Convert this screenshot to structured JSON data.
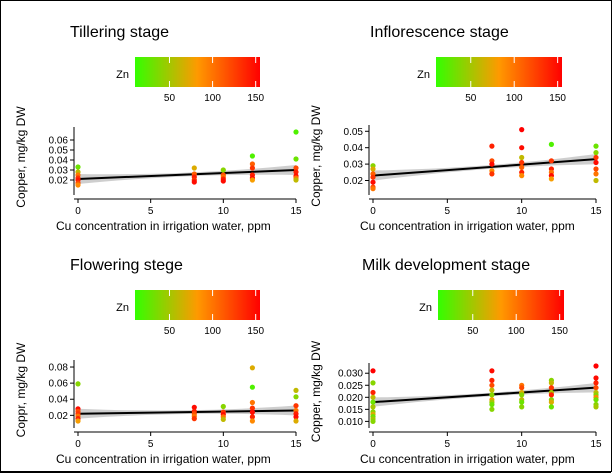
{
  "legend": {
    "title": "Zn",
    "ticks": [
      50,
      100,
      150
    ],
    "range": [
      10,
      155
    ],
    "colors": [
      "#33ff00",
      "#ff9900",
      "#ff0000"
    ]
  },
  "chart_data": [
    {
      "type": "scatter",
      "title": "Tillering stage",
      "xlabel": "Cu concentration in irrigation water, ppm",
      "ylabel": "Copper, mg/kg DW",
      "xlim": [
        0,
        15
      ],
      "ylim": [
        0.008,
        0.07
      ],
      "xticks": [
        0,
        5,
        10,
        15
      ],
      "yticks": [
        "0.02",
        "0.03",
        "0.04",
        "0.05",
        "0.06"
      ],
      "fit": {
        "x": [
          0,
          15
        ],
        "y": [
          0.021,
          0.03
        ]
      },
      "points": [
        {
          "x": 0,
          "y": 0.033,
          "z": 30
        },
        {
          "x": 0,
          "y": 0.028,
          "z": 60
        },
        {
          "x": 0,
          "y": 0.025,
          "z": 100
        },
        {
          "x": 0,
          "y": 0.022,
          "z": 130
        },
        {
          "x": 0,
          "y": 0.02,
          "z": 145
        },
        {
          "x": 0,
          "y": 0.017,
          "z": 120
        },
        {
          "x": 0,
          "y": 0.015,
          "z": 90
        },
        {
          "x": 8,
          "y": 0.032,
          "z": 70
        },
        {
          "x": 8,
          "y": 0.026,
          "z": 110
        },
        {
          "x": 8,
          "y": 0.023,
          "z": 140
        },
        {
          "x": 8,
          "y": 0.02,
          "z": 130
        },
        {
          "x": 8,
          "y": 0.018,
          "z": 150
        },
        {
          "x": 10,
          "y": 0.03,
          "z": 40
        },
        {
          "x": 10,
          "y": 0.025,
          "z": 120
        },
        {
          "x": 10,
          "y": 0.023,
          "z": 100
        },
        {
          "x": 10,
          "y": 0.021,
          "z": 140
        },
        {
          "x": 10,
          "y": 0.019,
          "z": 150
        },
        {
          "x": 12,
          "y": 0.044,
          "z": 20
        },
        {
          "x": 12,
          "y": 0.036,
          "z": 110
        },
        {
          "x": 12,
          "y": 0.032,
          "z": 130
        },
        {
          "x": 12,
          "y": 0.025,
          "z": 140
        },
        {
          "x": 12,
          "y": 0.022,
          "z": 150
        },
        {
          "x": 12,
          "y": 0.02,
          "z": 80
        },
        {
          "x": 15,
          "y": 0.068,
          "z": 20
        },
        {
          "x": 15,
          "y": 0.041,
          "z": 30
        },
        {
          "x": 15,
          "y": 0.032,
          "z": 120
        },
        {
          "x": 15,
          "y": 0.028,
          "z": 140
        },
        {
          "x": 15,
          "y": 0.024,
          "z": 150
        },
        {
          "x": 15,
          "y": 0.022,
          "z": 100
        },
        {
          "x": 15,
          "y": 0.02,
          "z": 60
        }
      ]
    },
    {
      "type": "scatter",
      "title": "Inflorescence stage",
      "xlabel": "Cu concentration in irrigation water, ppm",
      "ylabel": "Copper, mg/kg DW",
      "xlim": [
        0,
        15
      ],
      "ylim": [
        0.013,
        0.052
      ],
      "xticks": [
        0,
        5,
        10,
        15
      ],
      "yticks": [
        "0.02",
        "0.03",
        "0.04",
        "0.05"
      ],
      "fit": {
        "x": [
          0,
          15
        ],
        "y": [
          0.023,
          0.033
        ]
      },
      "points": [
        {
          "x": 0,
          "y": 0.029,
          "z": 40
        },
        {
          "x": 0,
          "y": 0.027,
          "z": 70
        },
        {
          "x": 0,
          "y": 0.024,
          "z": 110
        },
        {
          "x": 0,
          "y": 0.022,
          "z": 130
        },
        {
          "x": 0,
          "y": 0.019,
          "z": 150
        },
        {
          "x": 0,
          "y": 0.016,
          "z": 120
        },
        {
          "x": 0,
          "y": 0.015,
          "z": 100
        },
        {
          "x": 8,
          "y": 0.041,
          "z": 140
        },
        {
          "x": 8,
          "y": 0.032,
          "z": 120
        },
        {
          "x": 8,
          "y": 0.03,
          "z": 150
        },
        {
          "x": 8,
          "y": 0.026,
          "z": 90
        },
        {
          "x": 8,
          "y": 0.024,
          "z": 130
        },
        {
          "x": 10,
          "y": 0.051,
          "z": 155
        },
        {
          "x": 10,
          "y": 0.04,
          "z": 150
        },
        {
          "x": 10,
          "y": 0.034,
          "z": 60
        },
        {
          "x": 10,
          "y": 0.031,
          "z": 130
        },
        {
          "x": 10,
          "y": 0.028,
          "z": 110
        },
        {
          "x": 10,
          "y": 0.025,
          "z": 140
        },
        {
          "x": 10,
          "y": 0.023,
          "z": 90
        },
        {
          "x": 12,
          "y": 0.042,
          "z": 20
        },
        {
          "x": 12,
          "y": 0.032,
          "z": 130
        },
        {
          "x": 12,
          "y": 0.027,
          "z": 140
        },
        {
          "x": 12,
          "y": 0.025,
          "z": 100
        },
        {
          "x": 12,
          "y": 0.023,
          "z": 150
        },
        {
          "x": 12,
          "y": 0.021,
          "z": 80
        },
        {
          "x": 15,
          "y": 0.041,
          "z": 30
        },
        {
          "x": 15,
          "y": 0.037,
          "z": 40
        },
        {
          "x": 15,
          "y": 0.034,
          "z": 130
        },
        {
          "x": 15,
          "y": 0.031,
          "z": 150
        },
        {
          "x": 15,
          "y": 0.027,
          "z": 120
        },
        {
          "x": 15,
          "y": 0.024,
          "z": 100
        },
        {
          "x": 15,
          "y": 0.02,
          "z": 60
        }
      ]
    },
    {
      "type": "scatter",
      "title": "Flowering stege",
      "xlabel": "Cu concentration in irrigation water, ppm",
      "ylabel": "Coppr, mg/kg DW",
      "xlim": [
        0,
        15
      ],
      "ylim": [
        0.008,
        0.085
      ],
      "xticks": [
        0,
        5,
        10,
        15
      ],
      "yticks": [
        "0.02",
        "0.04",
        "0.06",
        "0.08"
      ],
      "fit": {
        "x": [
          0,
          15
        ],
        "y": [
          0.022,
          0.026
        ]
      },
      "points": [
        {
          "x": 0,
          "y": 0.059,
          "z": 40
        },
        {
          "x": 0,
          "y": 0.028,
          "z": 150
        },
        {
          "x": 0,
          "y": 0.025,
          "z": 120
        },
        {
          "x": 0,
          "y": 0.022,
          "z": 130
        },
        {
          "x": 0,
          "y": 0.019,
          "z": 100
        },
        {
          "x": 0,
          "y": 0.016,
          "z": 140
        },
        {
          "x": 0,
          "y": 0.013,
          "z": 80
        },
        {
          "x": 8,
          "y": 0.03,
          "z": 150
        },
        {
          "x": 8,
          "y": 0.025,
          "z": 140
        },
        {
          "x": 8,
          "y": 0.022,
          "z": 120
        },
        {
          "x": 8,
          "y": 0.019,
          "z": 100
        },
        {
          "x": 8,
          "y": 0.016,
          "z": 130
        },
        {
          "x": 10,
          "y": 0.031,
          "z": 40
        },
        {
          "x": 10,
          "y": 0.024,
          "z": 130
        },
        {
          "x": 10,
          "y": 0.021,
          "z": 150
        },
        {
          "x": 10,
          "y": 0.018,
          "z": 100
        },
        {
          "x": 10,
          "y": 0.015,
          "z": 60
        },
        {
          "x": 12,
          "y": 0.079,
          "z": 70
        },
        {
          "x": 12,
          "y": 0.055,
          "z": 20
        },
        {
          "x": 12,
          "y": 0.036,
          "z": 100
        },
        {
          "x": 12,
          "y": 0.029,
          "z": 130
        },
        {
          "x": 12,
          "y": 0.024,
          "z": 150
        },
        {
          "x": 12,
          "y": 0.018,
          "z": 140
        },
        {
          "x": 12,
          "y": 0.013,
          "z": 90
        },
        {
          "x": 15,
          "y": 0.051,
          "z": 60
        },
        {
          "x": 15,
          "y": 0.043,
          "z": 40
        },
        {
          "x": 15,
          "y": 0.032,
          "z": 130
        },
        {
          "x": 15,
          "y": 0.026,
          "z": 100
        },
        {
          "x": 15,
          "y": 0.022,
          "z": 140
        },
        {
          "x": 15,
          "y": 0.018,
          "z": 150
        },
        {
          "x": 15,
          "y": 0.013,
          "z": 70
        }
      ]
    },
    {
      "type": "scatter",
      "title": "Milk development stage",
      "xlabel": "Cu concentration in irrigation water, ppm",
      "ylabel": "Copper, mg/kg DW",
      "xlim": [
        0,
        15
      ],
      "ylim": [
        0.0085,
        0.033
      ],
      "xticks": [
        0,
        5,
        10,
        15
      ],
      "yticks": [
        "0.010",
        "0.015",
        "0.020",
        "0.025",
        "0.030"
      ],
      "fit": {
        "x": [
          0,
          15
        ],
        "y": [
          0.018,
          0.024
        ]
      },
      "points": [
        {
          "x": 0,
          "y": 0.031,
          "z": 155
        },
        {
          "x": 0,
          "y": 0.026,
          "z": 40
        },
        {
          "x": 0,
          "y": 0.022,
          "z": 140
        },
        {
          "x": 0,
          "y": 0.02,
          "z": 60
        },
        {
          "x": 0,
          "y": 0.018,
          "z": 30
        },
        {
          "x": 0,
          "y": 0.016,
          "z": 50
        },
        {
          "x": 0,
          "y": 0.014,
          "z": 40
        },
        {
          "x": 0,
          "y": 0.013,
          "z": 70
        },
        {
          "x": 0,
          "y": 0.012,
          "z": 30
        },
        {
          "x": 0,
          "y": 0.011,
          "z": 50
        },
        {
          "x": 0,
          "y": 0.01,
          "z": 40
        },
        {
          "x": 8,
          "y": 0.031,
          "z": 150
        },
        {
          "x": 8,
          "y": 0.027,
          "z": 140
        },
        {
          "x": 8,
          "y": 0.025,
          "z": 120
        },
        {
          "x": 8,
          "y": 0.023,
          "z": 60
        },
        {
          "x": 8,
          "y": 0.021,
          "z": 40
        },
        {
          "x": 8,
          "y": 0.019,
          "z": 80
        },
        {
          "x": 8,
          "y": 0.018,
          "z": 50
        },
        {
          "x": 8,
          "y": 0.017,
          "z": 30
        },
        {
          "x": 8,
          "y": 0.015,
          "z": 40
        },
        {
          "x": 10,
          "y": 0.025,
          "z": 100
        },
        {
          "x": 10,
          "y": 0.024,
          "z": 120
        },
        {
          "x": 10,
          "y": 0.022,
          "z": 70
        },
        {
          "x": 10,
          "y": 0.021,
          "z": 40
        },
        {
          "x": 10,
          "y": 0.019,
          "z": 60
        },
        {
          "x": 10,
          "y": 0.018,
          "z": 30
        },
        {
          "x": 10,
          "y": 0.016,
          "z": 40
        },
        {
          "x": 12,
          "y": 0.027,
          "z": 40
        },
        {
          "x": 12,
          "y": 0.026,
          "z": 60
        },
        {
          "x": 12,
          "y": 0.024,
          "z": 130
        },
        {
          "x": 12,
          "y": 0.022,
          "z": 50
        },
        {
          "x": 12,
          "y": 0.021,
          "z": 140
        },
        {
          "x": 12,
          "y": 0.019,
          "z": 40
        },
        {
          "x": 12,
          "y": 0.018,
          "z": 70
        },
        {
          "x": 12,
          "y": 0.016,
          "z": 30
        },
        {
          "x": 15,
          "y": 0.033,
          "z": 155
        },
        {
          "x": 15,
          "y": 0.028,
          "z": 150
        },
        {
          "x": 15,
          "y": 0.026,
          "z": 140
        },
        {
          "x": 15,
          "y": 0.024,
          "z": 120
        },
        {
          "x": 15,
          "y": 0.022,
          "z": 60
        },
        {
          "x": 15,
          "y": 0.021,
          "z": 40
        },
        {
          "x": 15,
          "y": 0.02,
          "z": 90
        },
        {
          "x": 15,
          "y": 0.019,
          "z": 30
        },
        {
          "x": 15,
          "y": 0.017,
          "z": 40
        },
        {
          "x": 15,
          "y": 0.016,
          "z": 50
        }
      ]
    }
  ]
}
